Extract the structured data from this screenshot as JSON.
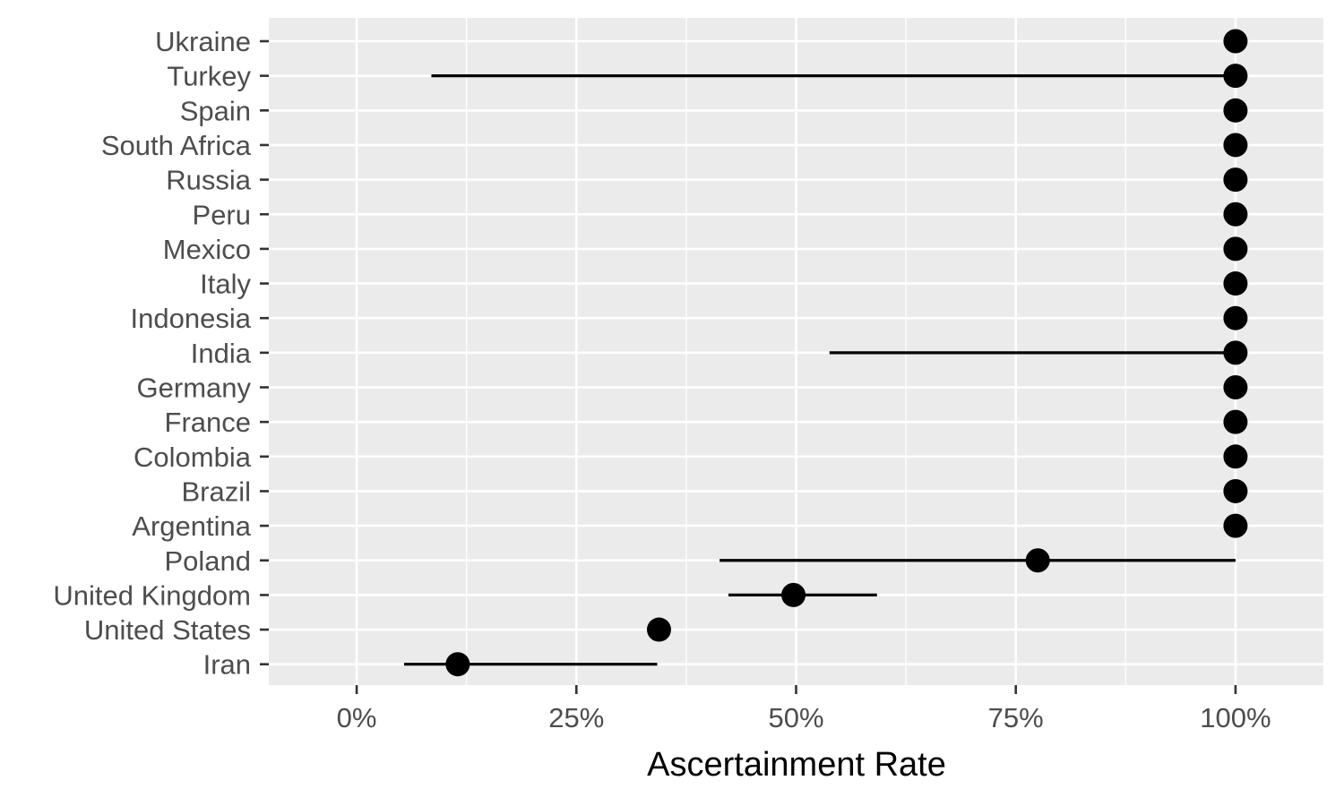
{
  "chart_data": {
    "type": "scatter",
    "title": "",
    "xlabel": "Ascertainment Rate",
    "ylabel": "",
    "xlim": [
      -0.1,
      1.1
    ],
    "x_ticks": [
      {
        "value": 0,
        "label": "0%"
      },
      {
        "value": 0.25,
        "label": "25%"
      },
      {
        "value": 0.5,
        "label": "50%"
      },
      {
        "value": 0.75,
        "label": "75%"
      },
      {
        "value": 1.0,
        "label": "100%"
      }
    ],
    "categories": [
      "Ukraine",
      "Turkey",
      "Spain",
      "South Africa",
      "Russia",
      "Peru",
      "Mexico",
      "Italy",
      "Indonesia",
      "India",
      "Germany",
      "France",
      "Colombia",
      "Brazil",
      "Argentina",
      "Poland",
      "United Kingdom",
      "United States",
      "Iran"
    ],
    "points": [
      {
        "category": "Ukraine",
        "value": 1.0,
        "lower": null,
        "upper": null
      },
      {
        "category": "Turkey",
        "value": 1.0,
        "lower": 0.085,
        "upper": 1.0
      },
      {
        "category": "Spain",
        "value": 1.0,
        "lower": null,
        "upper": null
      },
      {
        "category": "South Africa",
        "value": 1.0,
        "lower": null,
        "upper": null
      },
      {
        "category": "Russia",
        "value": 1.0,
        "lower": null,
        "upper": null
      },
      {
        "category": "Peru",
        "value": 1.0,
        "lower": null,
        "upper": null
      },
      {
        "category": "Mexico",
        "value": 1.0,
        "lower": null,
        "upper": null
      },
      {
        "category": "Italy",
        "value": 1.0,
        "lower": null,
        "upper": null
      },
      {
        "category": "Indonesia",
        "value": 1.0,
        "lower": null,
        "upper": null
      },
      {
        "category": "India",
        "value": 1.0,
        "lower": 0.538,
        "upper": 1.0
      },
      {
        "category": "Germany",
        "value": 1.0,
        "lower": null,
        "upper": null
      },
      {
        "category": "France",
        "value": 1.0,
        "lower": null,
        "upper": null
      },
      {
        "category": "Colombia",
        "value": 1.0,
        "lower": null,
        "upper": null
      },
      {
        "category": "Brazil",
        "value": 1.0,
        "lower": null,
        "upper": null
      },
      {
        "category": "Argentina",
        "value": 1.0,
        "lower": null,
        "upper": null
      },
      {
        "category": "Poland",
        "value": 0.775,
        "lower": 0.413,
        "upper": 1.0
      },
      {
        "category": "United Kingdom",
        "value": 0.497,
        "lower": 0.423,
        "upper": 0.592
      },
      {
        "category": "United States",
        "value": 0.344,
        "lower": null,
        "upper": null
      },
      {
        "category": "Iran",
        "value": 0.115,
        "lower": 0.054,
        "upper": 0.342
      }
    ],
    "grid": true,
    "legend": "none",
    "colors": {
      "panel_background": "#ebebeb",
      "grid": "#ffffff",
      "point": "#000000",
      "interval": "#000000",
      "tick_mark": "#333333",
      "tick_label": "#4d4d4d",
      "axis_title": "#000000"
    }
  }
}
